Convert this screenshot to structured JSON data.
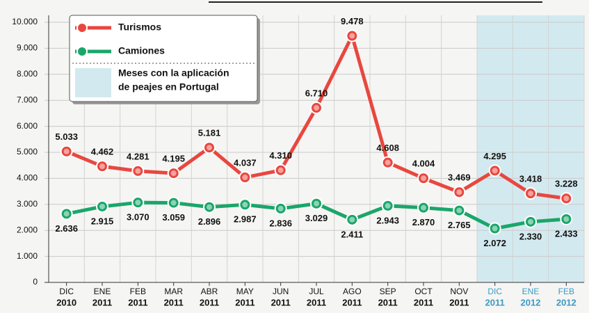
{
  "chart_data": {
    "type": "line",
    "categories": [
      [
        "DIC",
        "2010"
      ],
      [
        "ENE",
        "2011"
      ],
      [
        "FEB",
        "2011"
      ],
      [
        "MAR",
        "2011"
      ],
      [
        "ABR",
        "2011"
      ],
      [
        "MAY",
        "2011"
      ],
      [
        "JUN",
        "2011"
      ],
      [
        "JUL",
        "2011"
      ],
      [
        "AGO",
        "2011"
      ],
      [
        "SEP",
        "2011"
      ],
      [
        "OCT",
        "2011"
      ],
      [
        "NOV",
        "2011"
      ],
      [
        "DIC",
        "2011"
      ],
      [
        "ENE",
        "2012"
      ],
      [
        "FEB",
        "2012"
      ]
    ],
    "highlighted": [
      false,
      false,
      false,
      false,
      false,
      false,
      false,
      false,
      false,
      false,
      false,
      false,
      true,
      true,
      true
    ],
    "highlight_label": [
      "Meses con la aplicación",
      "de peajes en Portugal"
    ],
    "highlight_color": "#d3e9f0",
    "series": [
      {
        "name": "Turismos",
        "color": "#e8473f",
        "values": [
          5033,
          4462,
          4281,
          4195,
          5181,
          4037,
          4310,
          6710,
          9478,
          4608,
          4004,
          3469,
          4295,
          3418,
          3228
        ],
        "value_labels": [
          "5.033",
          "4.462",
          "4.281",
          "4.195",
          "5.181",
          "4.037",
          "4.310",
          "6.710",
          "9.478",
          "4.608",
          "4.004",
          "3.469",
          "4.295",
          "3.418",
          "3.228"
        ]
      },
      {
        "name": "Camiones",
        "color": "#1aa66a",
        "values": [
          2636,
          2915,
          3070,
          3059,
          2896,
          2987,
          2836,
          3029,
          2411,
          2943,
          2870,
          2765,
          2072,
          2330,
          2433
        ],
        "value_labels": [
          "2.636",
          "2.915",
          "3.070",
          "3.059",
          "2.896",
          "2.987",
          "2.836",
          "3.029",
          "2.411",
          "2.943",
          "2.870",
          "2.765",
          "2.072",
          "2.330",
          "2.433"
        ]
      }
    ],
    "ylim": [
      0,
      10000
    ],
    "yticks": [
      0,
      {
        "value": 1000,
        "label": "1.000"
      },
      {
        "value": 2000,
        "label": "2.000"
      },
      {
        "value": 3000,
        "label": "3.000"
      },
      {
        "value": 4000,
        "label": "4.000"
      },
      {
        "value": 5000,
        "label": "5.000"
      },
      {
        "value": 6000,
        "label": "6.000"
      },
      {
        "value": 7000,
        "label": "7.000"
      },
      {
        "value": 8000,
        "label": "8.000"
      },
      {
        "value": 9000,
        "label": "9.000"
      },
      {
        "value": 10000,
        "label": "10.000"
      }
    ],
    "grid": true
  }
}
